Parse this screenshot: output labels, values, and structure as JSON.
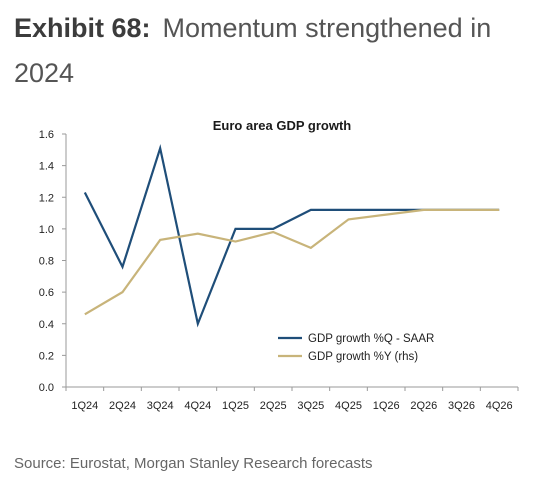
{
  "header": {
    "exhibit_number": "Exhibit 68:",
    "title": "Momentum strengthened in 2024"
  },
  "chart_data": {
    "type": "line",
    "title": "Euro area GDP growth",
    "categories": [
      "1Q24",
      "2Q24",
      "3Q24",
      "4Q24",
      "1Q25",
      "2Q25",
      "3Q25",
      "4Q25",
      "1Q26",
      "2Q26",
      "3Q26",
      "4Q26"
    ],
    "y_ticks": [
      "0.0",
      "0.2",
      "0.4",
      "0.6",
      "0.8",
      "1.0",
      "1.2",
      "1.4",
      "1.6"
    ],
    "ylim": [
      0,
      1.6
    ],
    "grid": false,
    "legend_position": "bottom-right",
    "series": [
      {
        "name": "GDP growth %Q - SAAR",
        "color": "#1f4e79",
        "values": [
          1.23,
          0.76,
          1.51,
          0.4,
          1.0,
          1.0,
          1.12,
          1.12,
          1.12,
          1.12,
          1.12,
          1.12
        ]
      },
      {
        "name": "GDP growth %Y (rhs)",
        "color": "#c8b47a",
        "values": [
          0.46,
          0.6,
          0.93,
          0.97,
          0.92,
          0.98,
          0.88,
          1.06,
          1.09,
          1.12,
          1.12,
          1.12
        ]
      }
    ]
  },
  "footer": {
    "source": "Source: Eurostat, Morgan Stanley Research forecasts"
  }
}
